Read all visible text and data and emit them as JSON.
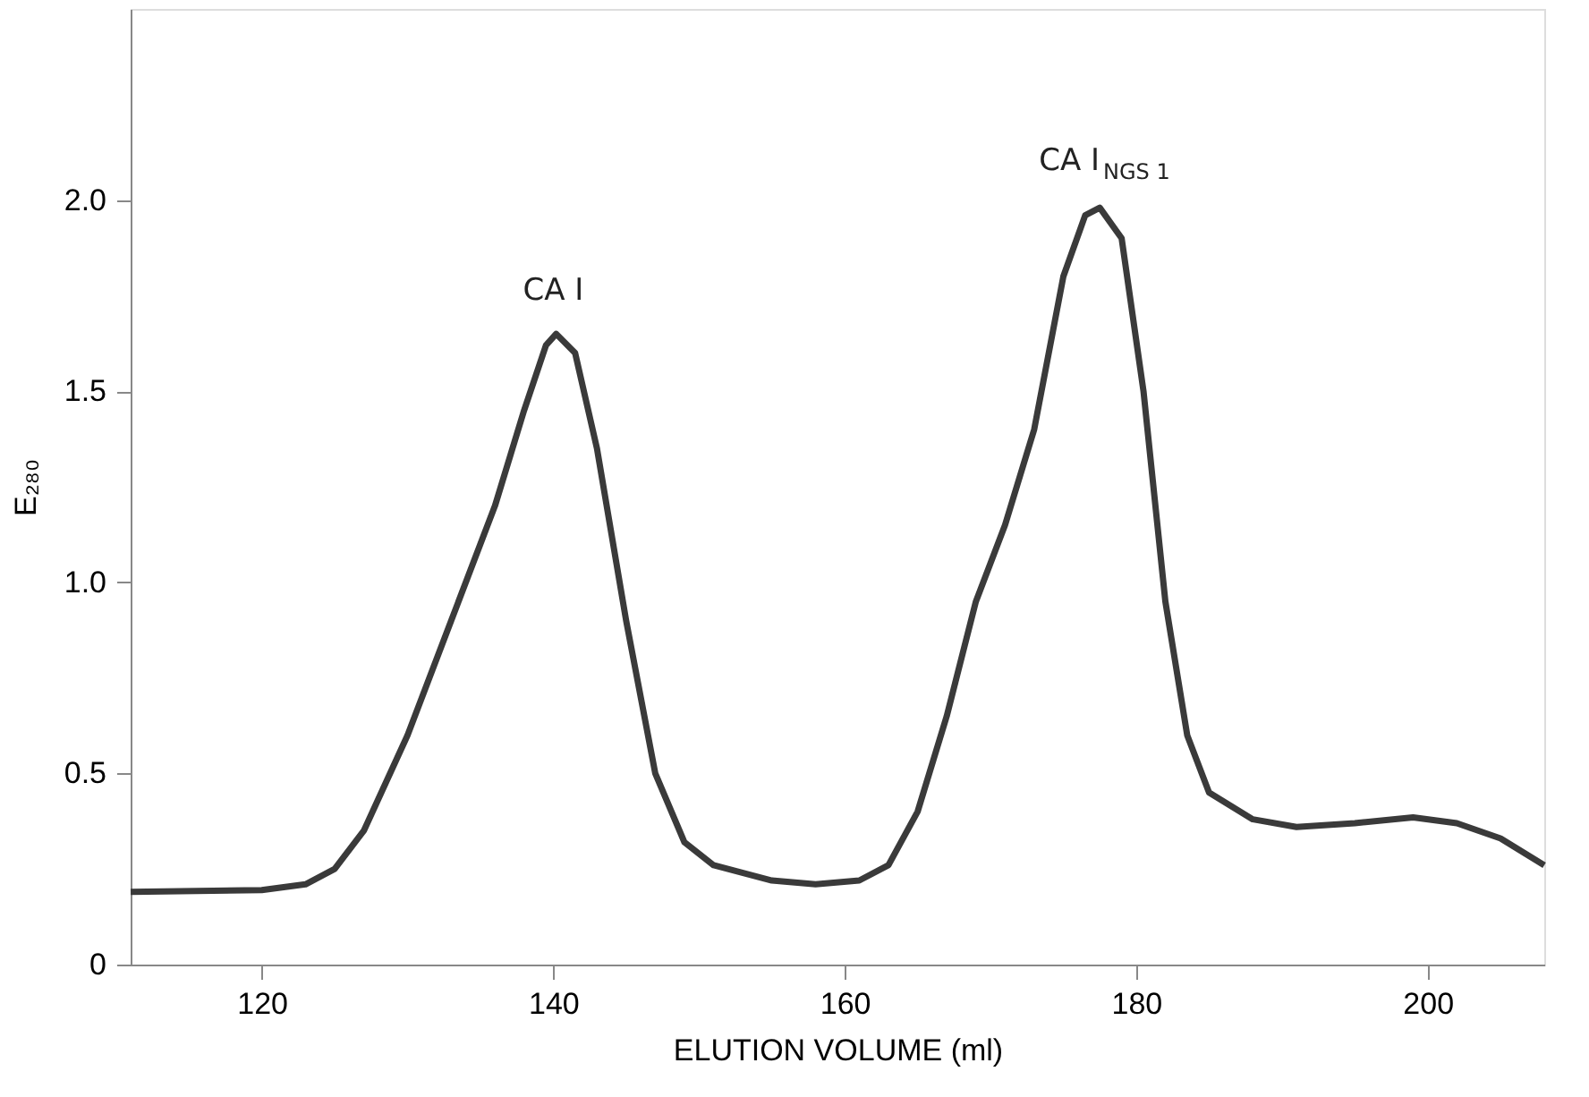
{
  "chart_data": {
    "type": "line",
    "xlabel": "ELUTION VOLUME  (ml)",
    "ylabel": "E₂₈₀",
    "xlim": [
      111,
      208
    ],
    "ylim": [
      0,
      2.5
    ],
    "xticks": [
      120,
      140,
      160,
      180,
      200
    ],
    "yticks": [
      {
        "value": 0,
        "label": "0"
      },
      {
        "value": 0.5,
        "label": "0.5"
      },
      {
        "value": 1,
        "label": "1.0"
      },
      {
        "value": 1.5,
        "label": "1.5"
      },
      {
        "value": 2,
        "label": "2.0"
      }
    ],
    "grid": false,
    "marker": "none",
    "line_style": "solid",
    "series": [
      {
        "color": "#3a3a3a",
        "x": [
          111,
          120,
          123,
          125,
          127,
          130,
          133,
          136,
          138,
          139.5,
          140.2,
          141.5,
          143,
          145,
          147,
          149,
          151,
          155,
          158,
          161,
          163,
          165,
          167,
          169,
          171,
          173,
          175,
          176.5,
          177.5,
          179,
          180.5,
          182,
          183.5,
          185,
          188,
          191,
          195,
          199,
          202,
          205,
          208
        ],
        "values": [
          0.19,
          0.195,
          0.21,
          0.25,
          0.35,
          0.6,
          0.9,
          1.2,
          1.45,
          1.62,
          1.65,
          1.6,
          1.35,
          0.9,
          0.5,
          0.32,
          0.26,
          0.22,
          0.21,
          0.22,
          0.26,
          0.4,
          0.65,
          0.95,
          1.15,
          1.4,
          1.8,
          1.96,
          1.98,
          1.9,
          1.5,
          0.95,
          0.6,
          0.45,
          0.38,
          0.36,
          0.37,
          0.385,
          0.37,
          0.33,
          0.26
        ]
      }
    ],
    "annotations": [
      {
        "text": "CA I",
        "x": 140,
        "y": 1.65
      },
      {
        "text": "CA I$_{NGS 1}$",
        "x": 177,
        "y": 1.98
      }
    ]
  }
}
